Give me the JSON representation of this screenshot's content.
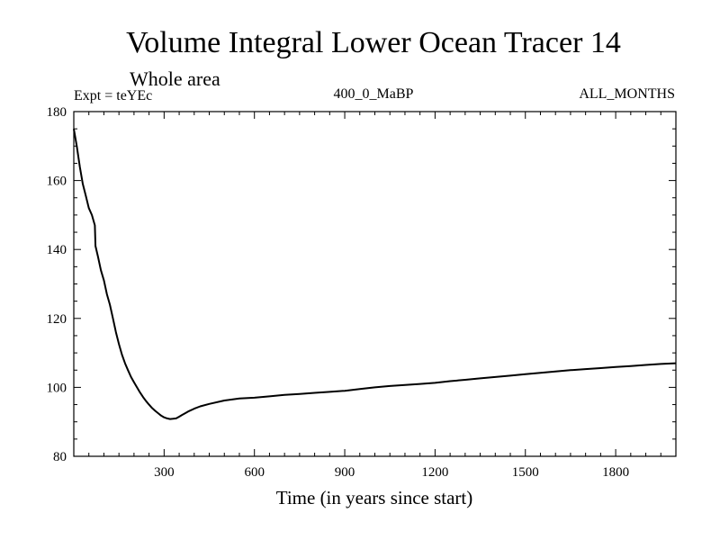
{
  "chart_data": {
    "type": "line",
    "title": "Volume Integral Lower Ocean Tracer 14",
    "subtitle": "Whole area",
    "experiment_label": "Expt = teYEc",
    "center_label": "400_0_MaBP",
    "right_label": "ALL_MONTHS",
    "xlabel": "Time (in years since start)",
    "ylabel": "",
    "xlim": [
      0,
      2000
    ],
    "ylim": [
      80,
      180
    ],
    "xticks": [
      300,
      600,
      900,
      1200,
      1500,
      1800
    ],
    "xtick_labels": [
      "300",
      "600",
      "900",
      "1200",
      "1500",
      "1800"
    ],
    "yticks": [
      80,
      100,
      120,
      140,
      160,
      180
    ],
    "ytick_labels": [
      "80",
      "100",
      "120",
      "140",
      "160",
      "180"
    ],
    "grid": false,
    "series": [
      {
        "name": "Tracer 14",
        "x": [
          0,
          10,
          20,
          30,
          40,
          50,
          60,
          70,
          72,
          80,
          90,
          100,
          110,
          120,
          130,
          140,
          150,
          160,
          170,
          180,
          190,
          200,
          210,
          220,
          230,
          240,
          250,
          260,
          270,
          280,
          290,
          300,
          310,
          320,
          330,
          340,
          350,
          360,
          370,
          380,
          400,
          420,
          450,
          500,
          550,
          600,
          650,
          700,
          750,
          800,
          850,
          900,
          950,
          1000,
          1050,
          1100,
          1150,
          1200,
          1250,
          1300,
          1350,
          1400,
          1450,
          1500,
          1550,
          1600,
          1650,
          1700,
          1750,
          1800,
          1850,
          1900,
          1950,
          2000
        ],
        "y": [
          175,
          170,
          164,
          159,
          155.5,
          152,
          150,
          147,
          141,
          138,
          134,
          131,
          127,
          124,
          120,
          116,
          112.5,
          109.5,
          107,
          105,
          103,
          101.5,
          100,
          98.5,
          97.2,
          96,
          95,
          94,
          93.2,
          92.5,
          91.8,
          91.3,
          91,
          90.8,
          90.9,
          91,
          91.5,
          92,
          92.5,
          93,
          93.8,
          94.5,
          95.2,
          96.2,
          96.8,
          97,
          97.4,
          97.8,
          98.1,
          98.4,
          98.7,
          99,
          99.5,
          100,
          100.4,
          100.7,
          101,
          101.3,
          101.8,
          102.2,
          102.6,
          103,
          103.4,
          103.8,
          104.2,
          104.6,
          105,
          105.3,
          105.6,
          105.9,
          106.2,
          106.5,
          106.8,
          107
        ]
      }
    ]
  }
}
